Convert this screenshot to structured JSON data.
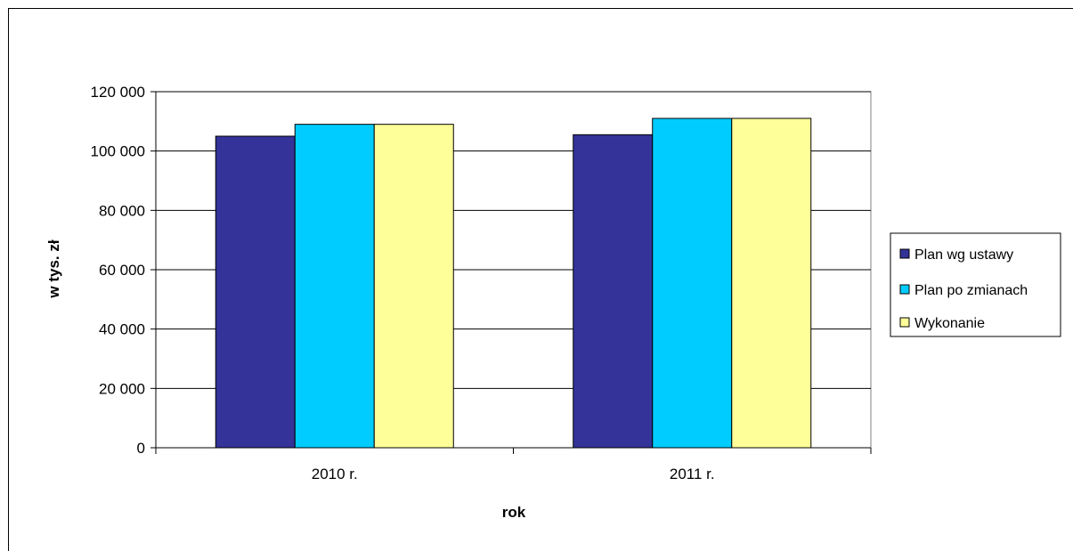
{
  "chart_data": {
    "type": "bar",
    "title": "",
    "xlabel": "rok",
    "ylabel": "w tys. zł",
    "categories": [
      "2010 r.",
      "2011 r."
    ],
    "ylim": [
      0,
      120000
    ],
    "yticks": [
      0,
      20000,
      40000,
      60000,
      80000,
      100000,
      120000
    ],
    "ytick_labels": [
      "0",
      "20 000",
      "40 000",
      "60 000",
      "80 000",
      "100 000",
      "120 000"
    ],
    "grid": true,
    "legend_position": "right",
    "series": [
      {
        "name": "Plan wg ustawy",
        "color": "#333399",
        "values": [
          105000,
          105500
        ]
      },
      {
        "name": "Plan po zmianach",
        "color": "#00CCFF",
        "values": [
          109000,
          111000
        ]
      },
      {
        "name": "Wykonanie",
        "color": "#FFFF99",
        "values": [
          109000,
          111000
        ]
      }
    ]
  }
}
